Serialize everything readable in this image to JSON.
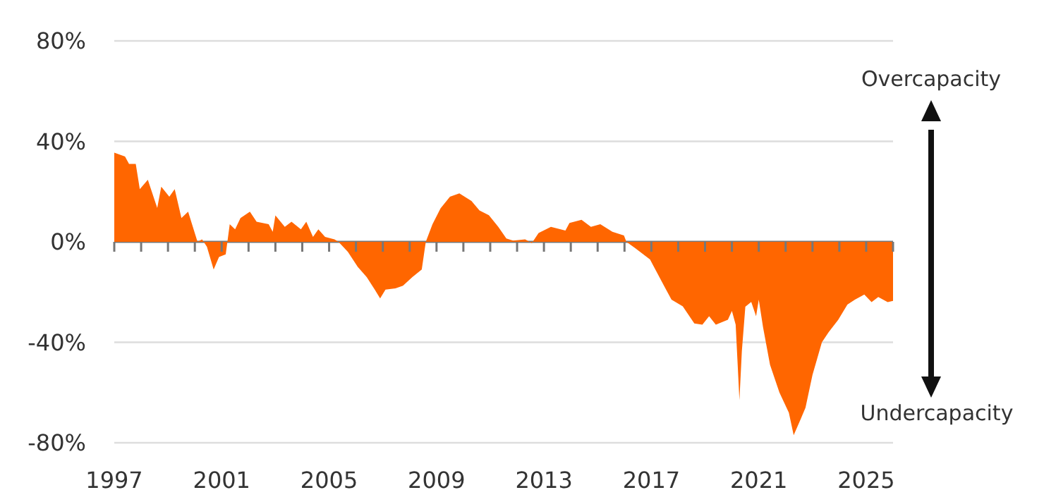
{
  "chart_data": {
    "type": "area",
    "x": [
      1997.0,
      1997.4,
      1997.55,
      1997.8,
      1997.95,
      1998.25,
      1998.6,
      1998.75,
      1999.05,
      1999.25,
      1999.5,
      1999.75,
      2000.1,
      2000.27,
      2000.45,
      2000.7,
      2000.9,
      2001.15,
      2001.3,
      2001.5,
      2001.7,
      2002.05,
      2002.3,
      2002.75,
      2002.9,
      2003.0,
      2003.35,
      2003.6,
      2003.95,
      2004.15,
      2004.4,
      2004.6,
      2004.85,
      2005.2,
      2005.35,
      2005.7,
      2006.07,
      2006.4,
      2006.7,
      2006.9,
      2007.1,
      2007.47,
      2007.75,
      2008.1,
      2008.45,
      2008.6,
      2008.85,
      2009.15,
      2009.5,
      2009.85,
      2010.3,
      2010.6,
      2010.95,
      2011.3,
      2011.6,
      2011.85,
      2012.3,
      2012.55,
      2012.8,
      2013.26,
      2013.8,
      2013.95,
      2014.4,
      2014.75,
      2015.1,
      2015.55,
      2015.98,
      2016.07,
      2016.4,
      2016.95,
      2017.1,
      2017.47,
      2017.75,
      2018.17,
      2018.6,
      2018.9,
      2019.15,
      2019.4,
      2019.85,
      2020.0,
      2020.14,
      2020.28,
      2020.37,
      2020.5,
      2020.72,
      2020.9,
      2021.0,
      2021.16,
      2021.42,
      2021.77,
      2022.12,
      2022.3,
      2022.56,
      2022.74,
      2023.0,
      2023.35,
      2023.6,
      2023.96,
      2024.3,
      2024.58,
      2024.93,
      2025.2,
      2025.45,
      2025.8,
      2026.0
    ],
    "series": [
      {
        "color": "#ff6600",
        "values": [
          35.5,
          34,
          31,
          31,
          21,
          24.7,
          13.5,
          22,
          18,
          21,
          9.5,
          12,
          0,
          1,
          -2,
          -11,
          -6,
          -5,
          7,
          5,
          9.5,
          12,
          8,
          7,
          4,
          10.5,
          6,
          8,
          5,
          8,
          2,
          5,
          2,
          1,
          0,
          -4,
          -10,
          -14,
          -19,
          -22.5,
          -19,
          -18.5,
          -17.5,
          -14,
          -11,
          0,
          7,
          13.3,
          18,
          19.3,
          16.3,
          12.5,
          10.6,
          6,
          1.3,
          0.5,
          1,
          -0.5,
          3.5,
          6,
          4.5,
          7.5,
          8.8,
          6,
          7,
          4,
          2.5,
          0,
          -2.5,
          -7,
          -10,
          -17.5,
          -23,
          -25.7,
          -32.5,
          -33,
          -29.6,
          -33,
          -31,
          -27.5,
          -33,
          -63,
          -43.5,
          -25.8,
          -23.9,
          -29.6,
          -23,
          -34,
          -49,
          -60,
          -68,
          -77,
          -70.6,
          -66,
          -53,
          -40,
          -36,
          -31,
          -25,
          -23,
          -21,
          -24,
          -22,
          -24,
          -23.5
        ]
      }
    ],
    "xlim": [
      1997,
      2026
    ],
    "xticks": [
      1997,
      {
        "value": 1998,
        "label": null
      },
      {
        "value": 1999,
        "label": null
      },
      {
        "value": 2000,
        "label": null
      },
      2001,
      {
        "value": 2002,
        "label": null
      },
      {
        "value": 2003,
        "label": null
      },
      {
        "value": 2004,
        "label": null
      },
      2005,
      {
        "value": 2006,
        "label": null
      },
      {
        "value": 2007,
        "label": null
      },
      {
        "value": 2008,
        "label": null
      },
      2009,
      {
        "value": 2010,
        "label": null
      },
      {
        "value": 2011,
        "label": null
      },
      {
        "value": 2012,
        "label": null
      },
      2013,
      {
        "value": 2014,
        "label": null
      },
      {
        "value": 2015,
        "label": null
      },
      {
        "value": 2016,
        "label": null
      },
      2017,
      {
        "value": 2018,
        "label": null
      },
      {
        "value": 2019,
        "label": null
      },
      {
        "value": 2020,
        "label": null
      },
      2021,
      {
        "value": 2022,
        "label": null
      },
      {
        "value": 2023,
        "label": null
      },
      {
        "value": 2024,
        "label": null
      },
      2025,
      {
        "value": 2026,
        "label": null
      }
    ],
    "ylim": [
      -80,
      80
    ],
    "yticks": [
      {
        "value": -80,
        "label": "-80%"
      },
      {
        "value": -40,
        "label": "-40%"
      },
      {
        "value": 0,
        "label": "0%"
      },
      {
        "value": 40,
        "label": "40%"
      },
      {
        "value": 80,
        "label": "80%"
      }
    ],
    "grid": "y",
    "annotations": [
      "Overcapacity",
      "Undercapacity"
    ]
  }
}
